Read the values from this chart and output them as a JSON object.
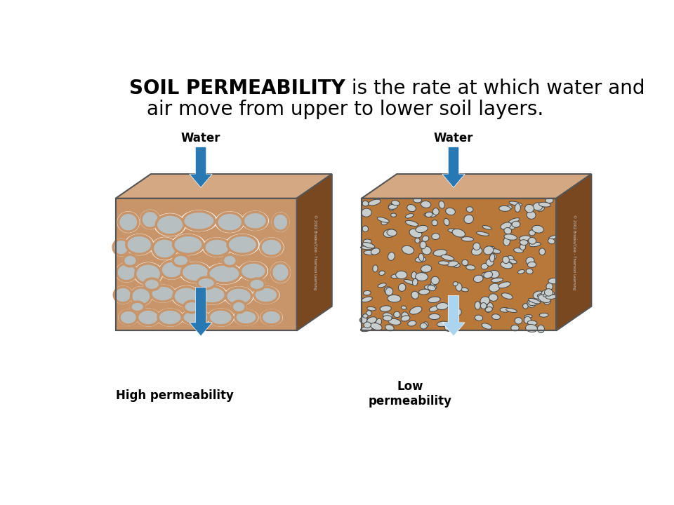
{
  "title_line1_bold": "SOIL PERMEABILITY",
  "title_line1_normal": " is the rate at which water and",
  "title_line2": "air move from upper to lower soil layers.",
  "title_fontsize": 20,
  "left_label_top": "Water",
  "left_label_bottom": "High permeability",
  "right_label_top": "Water",
  "right_label_bottom": "Low\npermeability",
  "bg_color": "#ffffff",
  "arrow_blue_dark": "#2878b4",
  "arrow_blue_light": "#aad4f0",
  "soil_top_color": "#d4a882",
  "soil_side_color": "#7a4820",
  "rock_color_high": "#b8bfc0",
  "rock_outline_high": "#8a8a8a",
  "rock_soil_vein": "#c8956a",
  "rock_color_low": "#c8cece",
  "rock_outline_low": "#444444",
  "soil_front_low": "#b8783a",
  "copyright": "© 2002 Brooks/Cole - Thomson Learning"
}
